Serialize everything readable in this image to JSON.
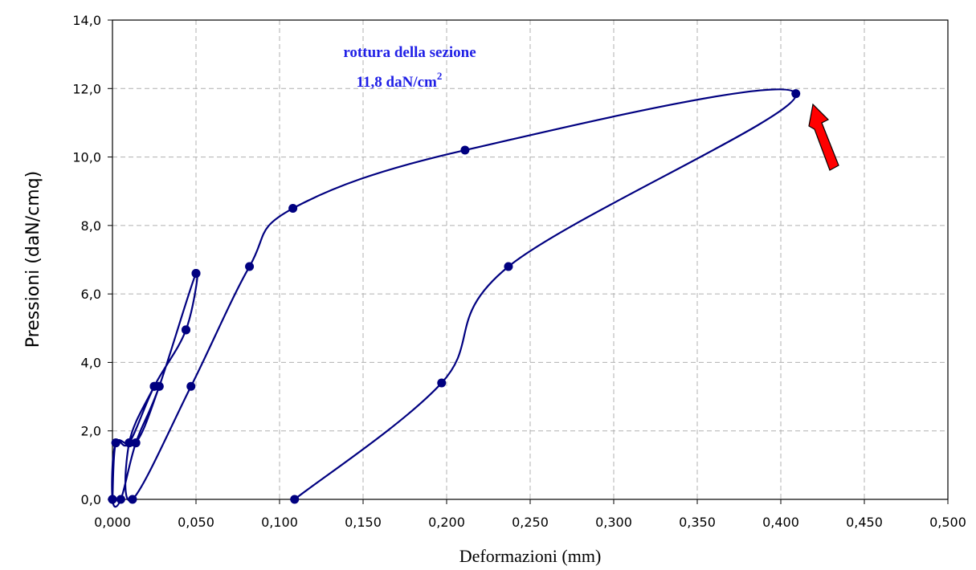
{
  "chart_data": {
    "type": "line",
    "title": "",
    "xlabel": "Deformazioni (mm)",
    "ylabel": "Pressioni (daN/cmq)",
    "xlim": [
      0,
      0.5
    ],
    "ylim": [
      0,
      14
    ],
    "x_ticks": [
      "0,000",
      "0,050",
      "0,100",
      "0,150",
      "0,200",
      "0,250",
      "0,300",
      "0,350",
      "0,400",
      "0,450",
      "0,500"
    ],
    "y_ticks": [
      "0,0",
      "2,0",
      "4,0",
      "6,0",
      "8,0",
      "10,0",
      "12,0",
      "14,0"
    ],
    "grid": true,
    "legend": "none",
    "series": [
      {
        "color": "#000080",
        "x": [
          0.0,
          0.002,
          0.01,
          0.025,
          0.044,
          0.05,
          0.028,
          0.014,
          0.005,
          0.0,
          0.002,
          0.014,
          0.028,
          0.05,
          0.044,
          0.025,
          0.01,
          0.012,
          0.047,
          0.082,
          0.108,
          0.211,
          0.409,
          0.237,
          0.197,
          0.109
        ],
        "y": [
          0.0,
          1.65,
          1.65,
          3.3,
          4.95,
          6.6,
          3.3,
          1.65,
          0.0,
          0.0,
          1.65,
          1.65,
          3.3,
          6.6,
          4.95,
          3.3,
          1.65,
          0.0,
          3.3,
          6.8,
          8.5,
          10.2,
          11.85,
          6.8,
          3.4,
          0.0
        ]
      }
    ],
    "annotations": [
      {
        "text": "rottura della sezione",
        "color": "#1f1fe6"
      },
      {
        "text": "11,8  daN/cm",
        "superscript": "2",
        "color": "#1f1fe6"
      }
    ],
    "arrow_color": "#ff0000"
  }
}
